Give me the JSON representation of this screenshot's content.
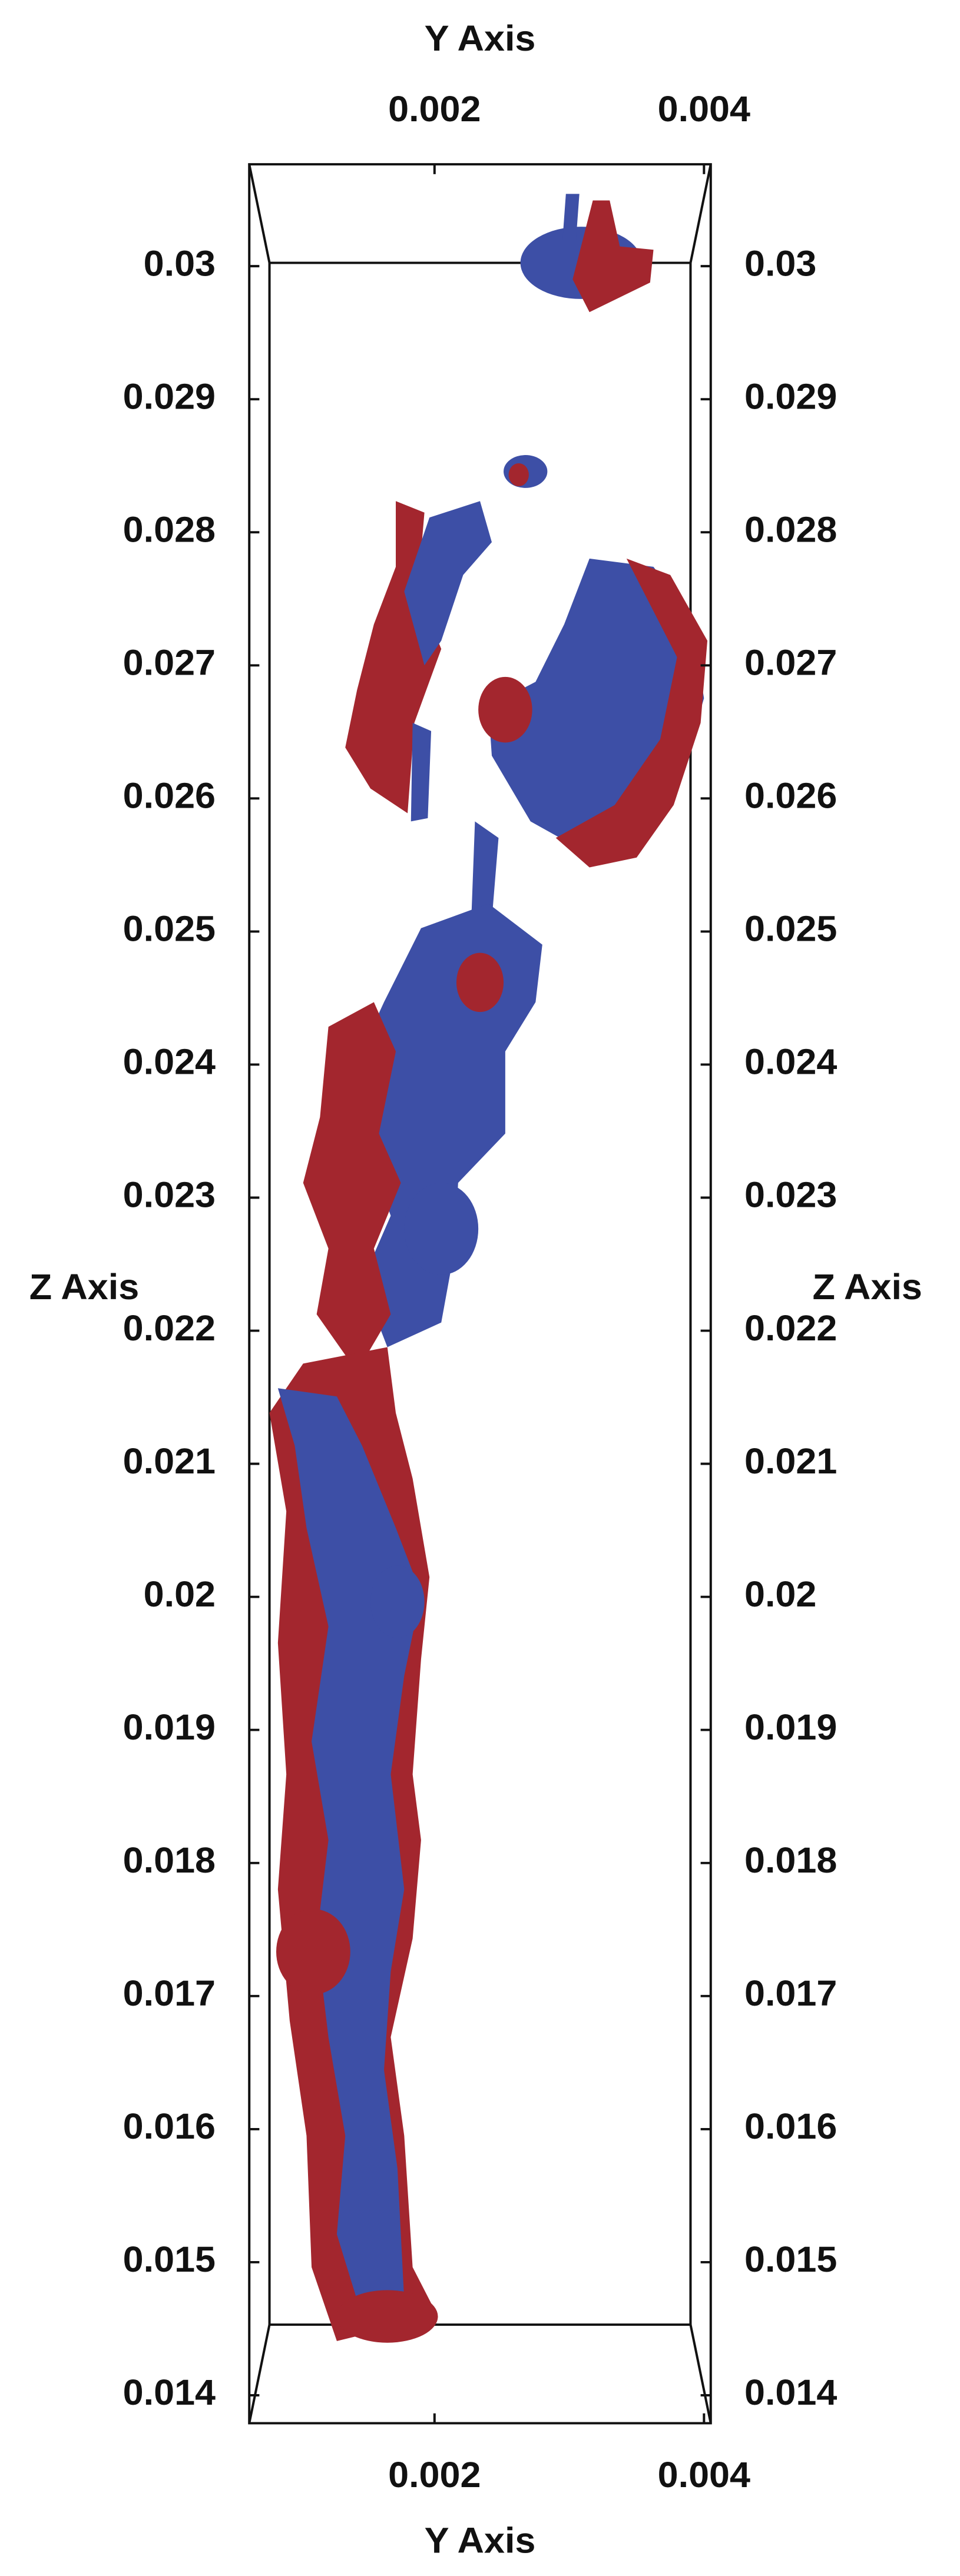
{
  "top_axis": {
    "title": "Y Axis",
    "ticks": [
      0.002,
      0.004
    ]
  },
  "bottom_axis": {
    "title": "Y Axis",
    "ticks": [
      0.002,
      0.004
    ]
  },
  "left_axis": {
    "title": "Z Axis",
    "ticks": [
      0.03,
      0.029,
      0.028,
      0.027,
      0.026,
      0.025,
      0.024,
      0.023,
      0.022,
      0.021,
      0.02,
      0.019,
      0.018,
      0.017,
      0.016,
      0.015,
      0.014
    ]
  },
  "right_axis": {
    "title": "Z Axis",
    "ticks": [
      0.03,
      0.029,
      0.028,
      0.027,
      0.026,
      0.025,
      0.024,
      0.023,
      0.022,
      0.021,
      0.02,
      0.019,
      0.018,
      0.017,
      0.016,
      0.015,
      0.014
    ]
  }
}
